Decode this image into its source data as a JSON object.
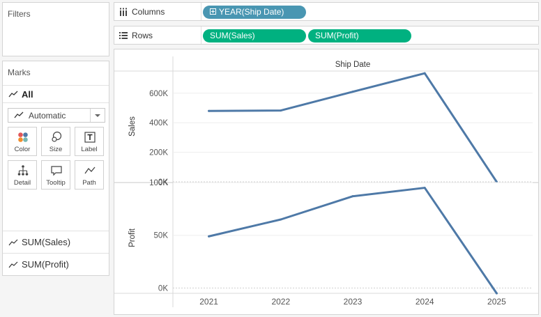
{
  "filters": {
    "title": "Filters"
  },
  "marks": {
    "title": "Marks",
    "all_label": "All",
    "mark_type": "Automatic",
    "buttons": [
      {
        "label": "Color",
        "icon": "color-dots-icon"
      },
      {
        "label": "Size",
        "icon": "size-circles-icon"
      },
      {
        "label": "Label",
        "icon": "label-t-icon"
      },
      {
        "label": "Detail",
        "icon": "detail-tree-icon"
      },
      {
        "label": "Tooltip",
        "icon": "tooltip-bubble-icon"
      },
      {
        "label": "Path",
        "icon": "path-line-icon"
      }
    ],
    "fields": [
      "SUM(Sales)",
      "SUM(Profit)"
    ]
  },
  "shelves": {
    "columns": {
      "label": "Columns",
      "pills": [
        "YEAR(Ship Date)"
      ]
    },
    "rows": {
      "label": "Rows",
      "pills": [
        "SUM(Sales)",
        "SUM(Profit)"
      ]
    }
  },
  "colors": {
    "line": "#4e79a7",
    "blue_pill": "#4996b2",
    "green_pill": "#00b180"
  },
  "chart_data": [
    {
      "type": "line",
      "header": "Ship Date",
      "x": [
        "2021",
        "2022",
        "2023",
        "2024",
        "2025"
      ],
      "ylabel": "Sales",
      "y_ticks": [
        "0K",
        "200K",
        "400K",
        "600K"
      ],
      "ylim": [
        0,
        750000
      ],
      "values": [
        480000,
        483000,
        610000,
        735000,
        0
      ],
      "grid": true
    },
    {
      "type": "line",
      "ylabel": "Profit",
      "y_ticks": [
        "0K",
        "50K",
        "100K"
      ],
      "ylim": [
        -5000,
        100000
      ],
      "values": [
        49000,
        65000,
        87000,
        95000,
        -5000
      ],
      "grid": true
    }
  ]
}
